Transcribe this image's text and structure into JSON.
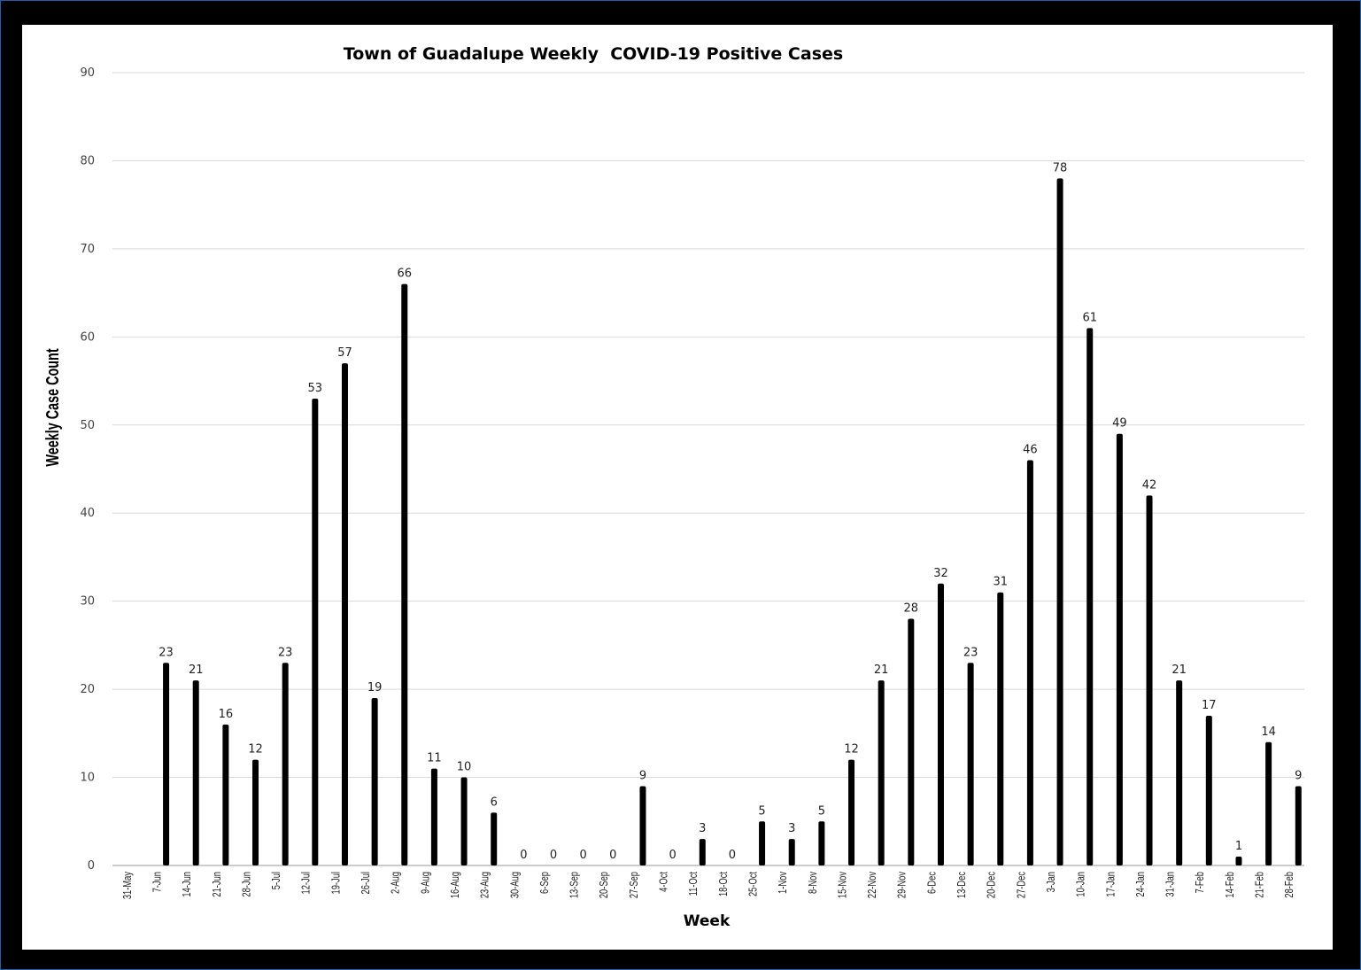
{
  "chart_data": {
    "type": "bar",
    "title": "Town of Guadalupe Weekly  COVID-19 Positive Cases",
    "xlabel": "Week",
    "ylabel": "Weekly Case Count",
    "ylim": [
      0,
      90
    ],
    "yticks": [
      0,
      10,
      20,
      30,
      40,
      50,
      60,
      70,
      80,
      90
    ],
    "grid": true,
    "bar_color": "#000000",
    "categories": [
      "31-May",
      "7-Jun",
      "14-Jun",
      "21-Jun",
      "28-Jun",
      "5-Jul",
      "12-Jul",
      "19-Jul",
      "26-Jul",
      "2-Aug",
      "9-Aug",
      "16-Aug",
      "23-Aug",
      "30-Aug",
      "6-Sep",
      "13-Sep",
      "20-Sep",
      "27-Sep",
      "4-Oct",
      "11-Oct",
      "18-Oct",
      "25-Oct",
      "1-Nov",
      "8-Nov",
      "15-Nov",
      "22-Nov",
      "29-Nov",
      "6-Dec",
      "13-Dec",
      "20-Dec",
      "27-Dec",
      "3-Jan",
      "10-Jan",
      "17-Jan",
      "24-Jan",
      "31-Jan",
      "7-Feb",
      "14-Feb",
      "21-Feb",
      "28-Feb"
    ],
    "points": [
      {
        "x": "7-Jun",
        "y": 23
      },
      {
        "x": "14-Jun",
        "y": 21
      },
      {
        "x": "21-Jun",
        "y": 16
      },
      {
        "x": "28-Jun",
        "y": 12
      },
      {
        "x": "5-Jul",
        "y": 23
      },
      {
        "x": "12-Jul",
        "y": 53
      },
      {
        "x": "19-Jul",
        "y": 57
      },
      {
        "x": "26-Jul",
        "y": 19
      },
      {
        "x": "2-Aug",
        "y": 66
      },
      {
        "x": "9-Aug",
        "y": 11
      },
      {
        "x": "16-Aug",
        "y": 10
      },
      {
        "x": "23-Aug",
        "y": 6
      },
      {
        "x": "30-Aug",
        "y": 0
      },
      {
        "x": "6-Sep",
        "y": 0
      },
      {
        "x": "13-Sep",
        "y": 0
      },
      {
        "x": "20-Sep",
        "y": 0
      },
      {
        "x": "27-Sep",
        "y": 9
      },
      {
        "x": "4-Oct",
        "y": 0
      },
      {
        "x": "11-Oct",
        "y": 3
      },
      {
        "x": "18-Oct",
        "y": 0
      },
      {
        "x": "25-Oct",
        "y": 5
      },
      {
        "x": "1-Nov",
        "y": 3
      },
      {
        "x": "8-Nov",
        "y": 5
      },
      {
        "x": "15-Nov",
        "y": 12
      },
      {
        "x": "22-Nov",
        "y": 21
      },
      {
        "x": "29-Nov",
        "y": 28
      },
      {
        "x": "6-Dec",
        "y": 32
      },
      {
        "x": "13-Dec",
        "y": 23
      },
      {
        "x": "20-Dec",
        "y": 31
      },
      {
        "x": "27-Dec",
        "y": 46
      },
      {
        "x": "3-Jan",
        "y": 78
      },
      {
        "x": "10-Jan",
        "y": 61
      },
      {
        "x": "17-Jan",
        "y": 49
      },
      {
        "x": "24-Jan",
        "y": 42
      },
      {
        "x": "31-Jan",
        "y": 21
      },
      {
        "x": "7-Feb",
        "y": 17
      },
      {
        "x": "14-Feb",
        "y": 1
      },
      {
        "x": "21-Feb",
        "y": 14
      },
      {
        "x": "28-Feb",
        "y": 9
      }
    ]
  }
}
